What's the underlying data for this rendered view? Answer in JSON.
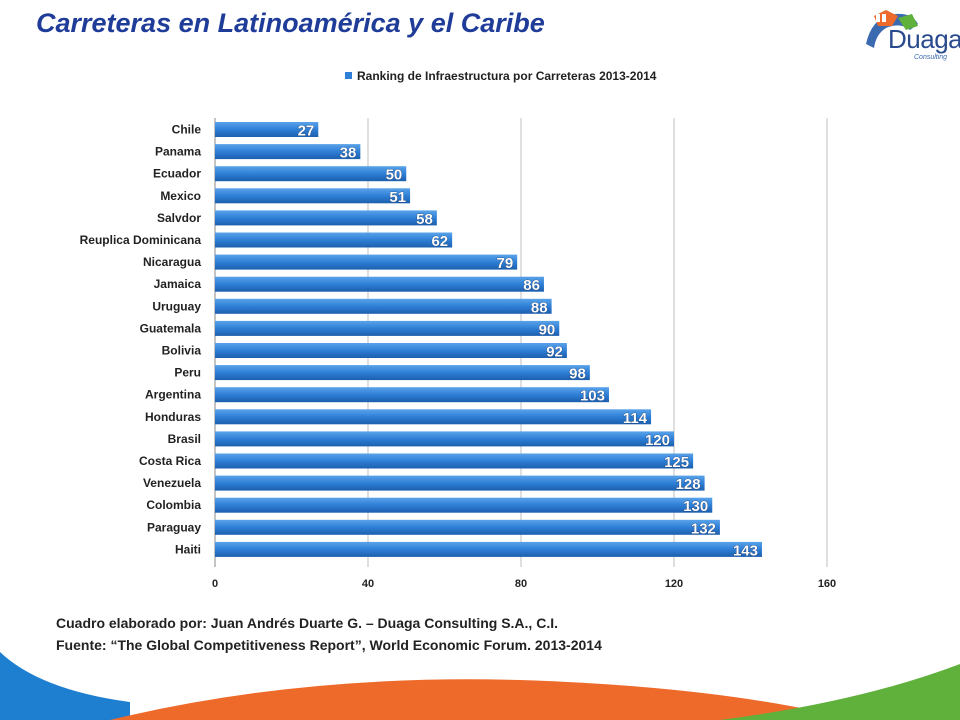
{
  "header": {
    "title": "Carreteras en Latinoamérica y el Caribe",
    "logo_text": "Duaga",
    "logo_sub": "Consulting"
  },
  "notes": {
    "author": "Cuadro elaborado por: Juan Andrés Duarte  G. – Duaga Consulting S.A., C.I.",
    "source": "Fuente: “The Global Competitiveness Report”, World Economic Forum. 2013-2014"
  },
  "colors": {
    "title": "#1f3c99",
    "bar": "#2e7fd6",
    "bar_dark": "#1c5fae",
    "grid": "#bfbfbf",
    "footer_blue": "#1e7fd0",
    "footer_orange": "#ee6a2a",
    "footer_green": "#5fb13c"
  },
  "chart_data": {
    "type": "bar",
    "orientation": "horizontal",
    "title": "",
    "legend": {
      "position": "top",
      "entries": [
        "Ranking de Infraestructura por Carreteras 2013-2014"
      ]
    },
    "categories": [
      "Chile",
      "Panama",
      "Ecuador",
      "Mexico",
      "Salvdor",
      "Reuplica Dominicana",
      "Nicaragua",
      "Jamaica",
      "Uruguay",
      "Guatemala",
      "Bolivia",
      "Peru",
      "Argentina",
      "Honduras",
      "Brasil",
      "Costa Rica",
      "Venezuela",
      "Colombia",
      "Paraguay",
      "Haiti"
    ],
    "series": [
      {
        "name": "Ranking de Infraestructura por Carreteras 2013-2014",
        "values": [
          27,
          38,
          50,
          51,
          58,
          62,
          79,
          86,
          88,
          90,
          92,
          98,
          103,
          114,
          120,
          125,
          128,
          130,
          132,
          143
        ]
      }
    ],
    "x_ticks": [
      0,
      40,
      80,
      120,
      160
    ],
    "xlim": [
      0,
      160
    ],
    "grid": true,
    "xlabel": "",
    "ylabel": ""
  }
}
